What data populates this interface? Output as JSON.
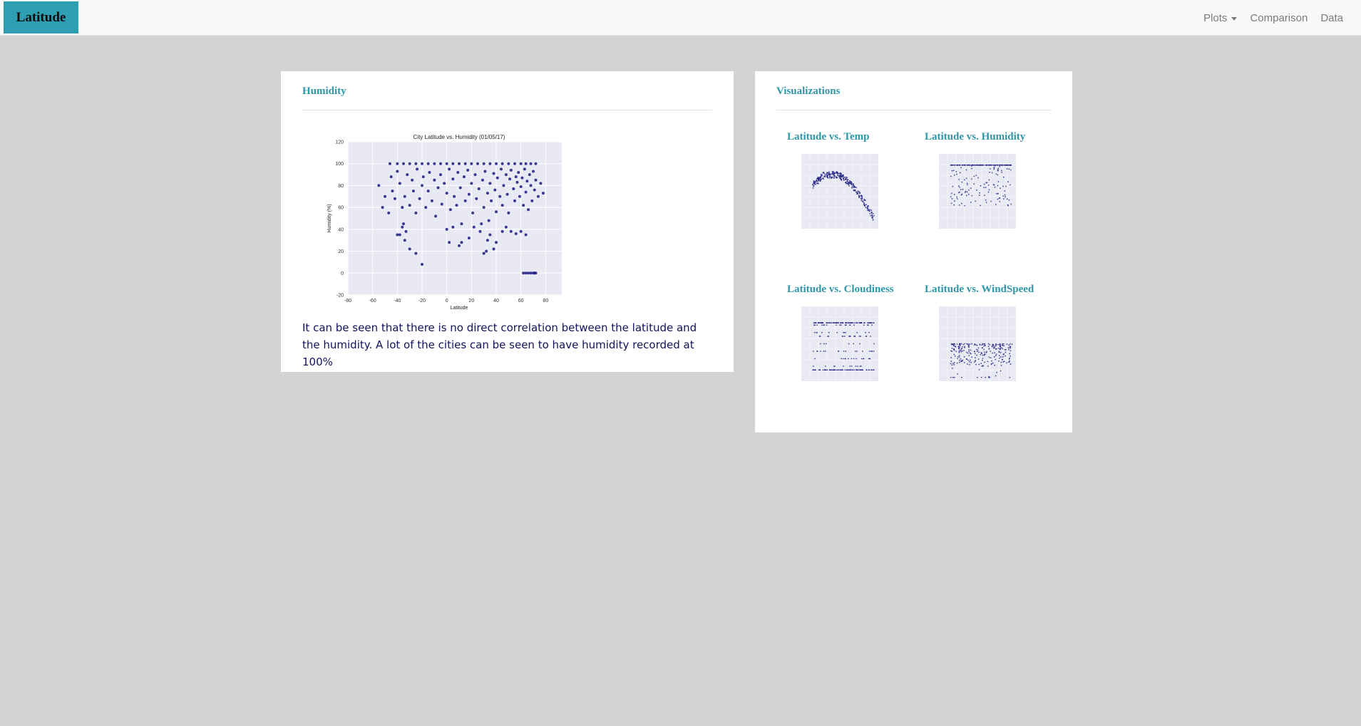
{
  "navbar": {
    "brand": "Latitude",
    "links": [
      {
        "label": "Plots",
        "dropdown": true
      },
      {
        "label": "Comparison"
      },
      {
        "label": "Data"
      }
    ]
  },
  "colors": {
    "accent": "#2e9fb2",
    "heading": "#2e96a8",
    "point": "#1a1a80",
    "plot_bg": "#e9e9f4",
    "page_bg": "#d3d3d3"
  },
  "main": {
    "title": "Humidity",
    "caption": "It can be seen that there is no direct correlation between the latitude and the humidity. A lot of the cities can be seen to have humidity recorded at 100%"
  },
  "sidebar": {
    "title": "Visualizations",
    "items": [
      {
        "label": "Latitude vs. Temp",
        "kind": "temp"
      },
      {
        "label": "Latitude vs. Humidity",
        "kind": "humidity"
      },
      {
        "label": "Latitude vs. Cloudiness",
        "kind": "cloud"
      },
      {
        "label": "Latitude vs. WindSpeed",
        "kind": "wind"
      }
    ]
  },
  "chart_data": {
    "type": "scatter",
    "title": "City Latitude vs. Humidity (01/05/17)",
    "xlabel": "Latitude",
    "ylabel": "Humidity (%)",
    "xlim": [
      -80,
      100
    ],
    "ylim": [
      -20,
      120
    ],
    "xticks": [
      -80,
      -60,
      -40,
      -20,
      0,
      20,
      40,
      60,
      80,
      100
    ],
    "yticks": [
      -20,
      0,
      20,
      40,
      60,
      80,
      100,
      120
    ],
    "grid": true,
    "points": [
      [
        -46,
        100
      ],
      [
        -40,
        100
      ],
      [
        -35,
        100
      ],
      [
        -30,
        100
      ],
      [
        -25,
        100
      ],
      [
        -20,
        100
      ],
      [
        -15,
        100
      ],
      [
        -10,
        100
      ],
      [
        -5,
        100
      ],
      [
        0,
        100
      ],
      [
        5,
        100
      ],
      [
        10,
        100
      ],
      [
        15,
        100
      ],
      [
        20,
        100
      ],
      [
        25,
        100
      ],
      [
        30,
        100
      ],
      [
        35,
        100
      ],
      [
        40,
        100
      ],
      [
        45,
        100
      ],
      [
        50,
        100
      ],
      [
        55,
        100
      ],
      [
        60,
        100
      ],
      [
        64,
        100
      ],
      [
        68,
        100
      ],
      [
        72,
        100
      ],
      [
        -55,
        80
      ],
      [
        -52,
        60
      ],
      [
        -50,
        70
      ],
      [
        -47,
        55
      ],
      [
        -45,
        88
      ],
      [
        -44,
        75
      ],
      [
        -42,
        68
      ],
      [
        -40,
        93
      ],
      [
        -38,
        82
      ],
      [
        -36,
        60
      ],
      [
        -35,
        45
      ],
      [
        -34,
        70
      ],
      [
        -32,
        90
      ],
      [
        -30,
        62
      ],
      [
        -28,
        85
      ],
      [
        -27,
        75
      ],
      [
        -25,
        55
      ],
      [
        -24,
        95
      ],
      [
        -22,
        68
      ],
      [
        -20,
        80
      ],
      [
        -19,
        88
      ],
      [
        -17,
        60
      ],
      [
        -15,
        75
      ],
      [
        -14,
        92
      ],
      [
        -12,
        66
      ],
      [
        -10,
        85
      ],
      [
        -9,
        52
      ],
      [
        -7,
        78
      ],
      [
        -5,
        90
      ],
      [
        -4,
        63
      ],
      [
        -2,
        82
      ],
      [
        0,
        73
      ],
      [
        2,
        95
      ],
      [
        3,
        58
      ],
      [
        5,
        86
      ],
      [
        6,
        70
      ],
      [
        8,
        62
      ],
      [
        9,
        92
      ],
      [
        11,
        78
      ],
      [
        12,
        45
      ],
      [
        14,
        88
      ],
      [
        15,
        66
      ],
      [
        17,
        94
      ],
      [
        18,
        72
      ],
      [
        20,
        82
      ],
      [
        21,
        55
      ],
      [
        23,
        90
      ],
      [
        24,
        68
      ],
      [
        26,
        77
      ],
      [
        27,
        38
      ],
      [
        29,
        85
      ],
      [
        30,
        60
      ],
      [
        31,
        93
      ],
      [
        33,
        73
      ],
      [
        34,
        48
      ],
      [
        35,
        82
      ],
      [
        36,
        66
      ],
      [
        38,
        91
      ],
      [
        39,
        76
      ],
      [
        40,
        56
      ],
      [
        41,
        87
      ],
      [
        43,
        70
      ],
      [
        44,
        95
      ],
      [
        45,
        62
      ],
      [
        46,
        80
      ],
      [
        48,
        90
      ],
      [
        49,
        72
      ],
      [
        50,
        55
      ],
      [
        51,
        86
      ],
      [
        52,
        94
      ],
      [
        54,
        77
      ],
      [
        55,
        66
      ],
      [
        56,
        88
      ],
      [
        57,
        83
      ],
      [
        58,
        92
      ],
      [
        59,
        70
      ],
      [
        60,
        79
      ],
      [
        61,
        87
      ],
      [
        62,
        62
      ],
      [
        63,
        95
      ],
      [
        64,
        74
      ],
      [
        65,
        84
      ],
      [
        66,
        58
      ],
      [
        67,
        90
      ],
      [
        68,
        80
      ],
      [
        69,
        66
      ],
      [
        70,
        93
      ],
      [
        71,
        76
      ],
      [
        72,
        85
      ],
      [
        74,
        70
      ],
      [
        76,
        82
      ],
      [
        78,
        73
      ],
      [
        -38,
        35
      ],
      [
        -36,
        42
      ],
      [
        -34,
        30
      ],
      [
        -33,
        38
      ],
      [
        -40,
        35
      ],
      [
        -30,
        22
      ],
      [
        -25,
        18
      ],
      [
        -20,
        8
      ],
      [
        0,
        40
      ],
      [
        2,
        28
      ],
      [
        5,
        42
      ],
      [
        10,
        25
      ],
      [
        12,
        28
      ],
      [
        18,
        32
      ],
      [
        22,
        42
      ],
      [
        28,
        45
      ],
      [
        30,
        18
      ],
      [
        32,
        20
      ],
      [
        33,
        30
      ],
      [
        35,
        35
      ],
      [
        38,
        22
      ],
      [
        40,
        28
      ],
      [
        45,
        38
      ],
      [
        48,
        42
      ],
      [
        52,
        38
      ],
      [
        56,
        36
      ],
      [
        60,
        38
      ],
      [
        64,
        35
      ],
      [
        62,
        0
      ],
      [
        64,
        0
      ],
      [
        66,
        0
      ],
      [
        68,
        0
      ],
      [
        70,
        0
      ],
      [
        71,
        0
      ],
      [
        72,
        0
      ]
    ]
  }
}
